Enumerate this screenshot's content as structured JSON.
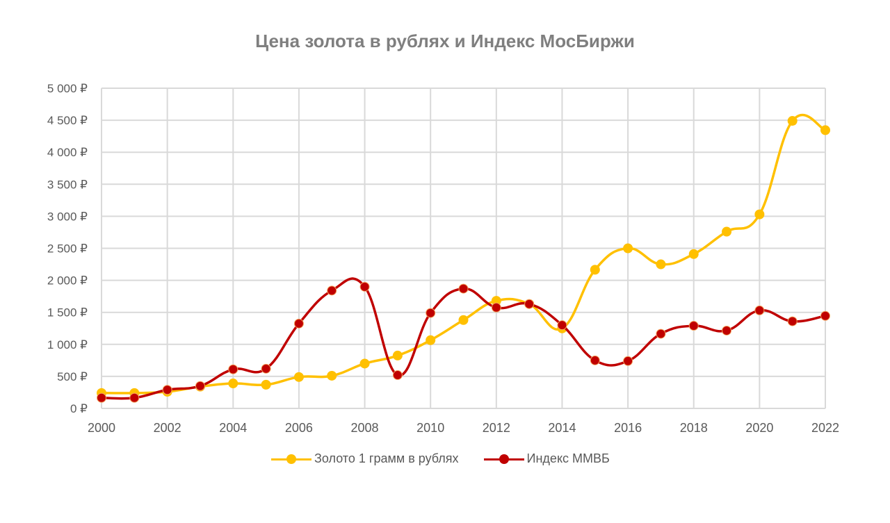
{
  "title": "Цена золота в рублях и Индекс МосБиржи",
  "colors": {
    "gold": "#FFC000",
    "mmvb": "#C00000",
    "grid": "#d9d9d9",
    "text": "#595959",
    "title": "#7f7f7f"
  },
  "legend": [
    {
      "label": "Золото 1 грамм в рублях",
      "color": "#FFC000"
    },
    {
      "label": "Индекс ММВБ",
      "color": "#C00000"
    }
  ],
  "chart_data": {
    "type": "line",
    "title": "Цена золота в рублях и Индекс МосБиржи",
    "xlabel": "",
    "ylabel": "",
    "ylim": [
      0,
      5000
    ],
    "grid": true,
    "legend_position": "bottom",
    "smooth": true,
    "x": [
      2000,
      2001,
      2002,
      2003,
      2004,
      2005,
      2006,
      2007,
      2008,
      2009,
      2010,
      2011,
      2012,
      2013,
      2014,
      2015,
      2016,
      2017,
      2018,
      2019,
      2020,
      2021,
      2022
    ],
    "x_tick_labels": [
      "2000",
      "2002",
      "2004",
      "2006",
      "2008",
      "2010",
      "2012",
      "2014",
      "2016",
      "2018",
      "2020",
      "2022"
    ],
    "y_tick_labels": [
      "0 ₽",
      "500 ₽",
      "1 000 ₽",
      "1 500 ₽",
      "2 000 ₽",
      "2 500 ₽",
      "3 000 ₽",
      "3 500 ₽",
      "4 000 ₽",
      "4 500 ₽",
      "5 000 ₽"
    ],
    "y_ticks": [
      0,
      500,
      1000,
      1500,
      2000,
      2500,
      3000,
      3500,
      4000,
      4500,
      5000
    ],
    "series": [
      {
        "name": "Золото 1 грамм в рублях",
        "color": "#FFC000",
        "values": [
          240,
          240,
          260,
          340,
          390,
          370,
          490,
          510,
          700,
          825,
          1065,
          1380,
          1680,
          1630,
          1250,
          2165,
          2500,
          2250,
          2410,
          2760,
          3030,
          4490,
          4345
        ]
      },
      {
        "name": "Индекс ММВБ",
        "color": "#C00000",
        "values": [
          165,
          165,
          290,
          350,
          610,
          620,
          1325,
          1840,
          1900,
          520,
          1490,
          1870,
          1575,
          1630,
          1300,
          750,
          740,
          1165,
          1290,
          1215,
          1530,
          1360,
          1445
        ]
      }
    ]
  }
}
